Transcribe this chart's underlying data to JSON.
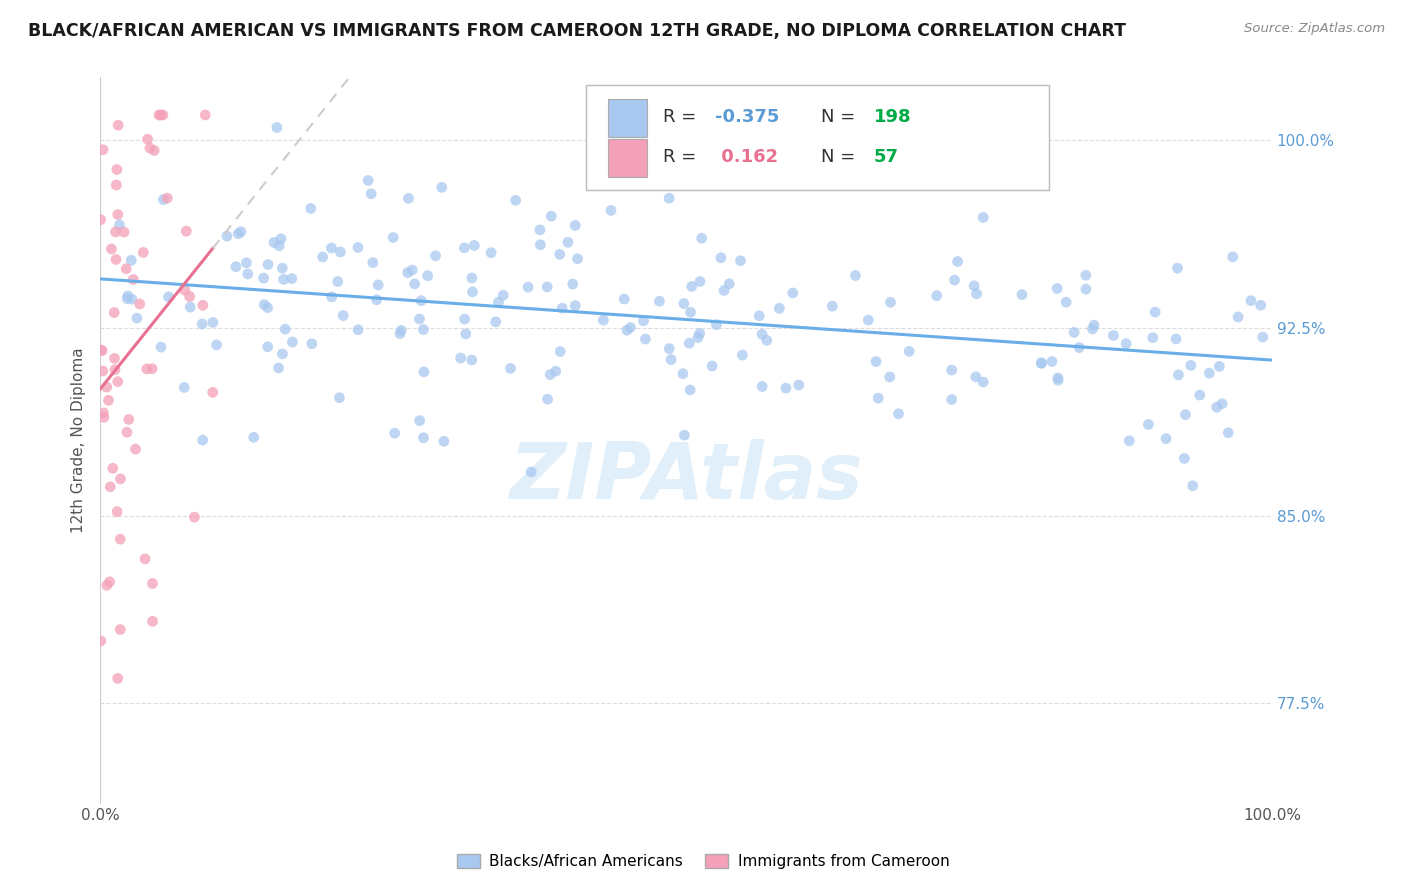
{
  "title": "BLACK/AFRICAN AMERICAN VS IMMIGRANTS FROM CAMEROON 12TH GRADE, NO DIPLOMA CORRELATION CHART",
  "source_text": "Source: ZipAtlas.com",
  "ylabel": "12th Grade, No Diploma",
  "xlim": [
    0.0,
    1.0
  ],
  "ylim": [
    0.735,
    1.025
  ],
  "ytick_values": [
    0.775,
    0.85,
    0.925,
    1.0
  ],
  "ytick_labels": [
    "77.5%",
    "85.0%",
    "92.5%",
    "100.0%"
  ],
  "xtick_values": [
    0.0,
    1.0
  ],
  "xtick_labels": [
    "0.0%",
    "100.0%"
  ],
  "blue_R": -0.375,
  "blue_N": 198,
  "pink_R": 0.162,
  "pink_N": 57,
  "blue_scatter_color": "#a8c8f0",
  "pink_scatter_color": "#f4a0b8",
  "blue_line_color": "#6aaee8",
  "pink_line_color": "#e87090",
  "legend_blue_label": "Blacks/African Americans",
  "legend_pink_label": "Immigrants from Cameroon",
  "watermark": "ZIPAtlas",
  "background_color": "#ffffff",
  "grid_color": "#dddddd",
  "blue_legend_color": "#5b9bd5",
  "pink_legend_color": "#e06080",
  "n_color": "#00aa44"
}
